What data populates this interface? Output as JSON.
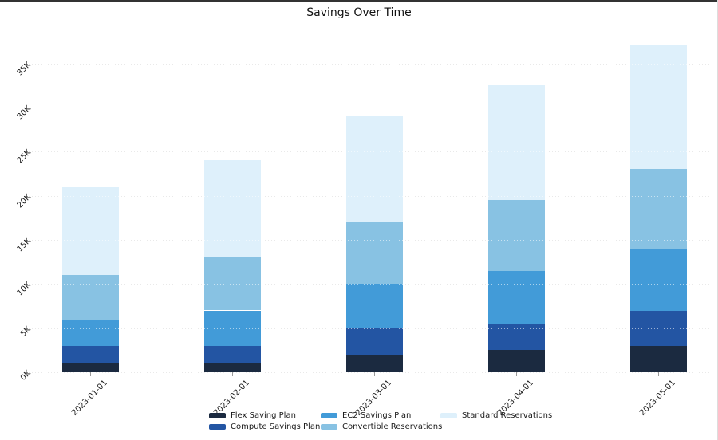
{
  "chart_data": {
    "type": "bar",
    "stacked": true,
    "title": "Savings Over Time",
    "categories": [
      "2023-01-01",
      "2023-02-01",
      "2023-03-01",
      "2023-04-01",
      "2023-05-01"
    ],
    "series": [
      {
        "name": "Flex Saving Plan",
        "color": "#1b2a40",
        "values": [
          1000,
          1000,
          2000,
          2500,
          3000
        ]
      },
      {
        "name": "Compute Savings Plan",
        "color": "#2355a3",
        "values": [
          2000,
          2000,
          3000,
          3000,
          4000
        ]
      },
      {
        "name": "EC2 Savings Plan",
        "color": "#429bd8",
        "values": [
          3000,
          4000,
          5000,
          6000,
          7000
        ]
      },
      {
        "name": "Convertible Reservations",
        "color": "#88c2e3",
        "values": [
          5000,
          6000,
          7000,
          8000,
          9000
        ]
      },
      {
        "name": "Standard Reservations",
        "color": "#def0fb",
        "values": [
          10000,
          11000,
          12000,
          13000,
          14000
        ]
      }
    ],
    "totals": [
      21000,
      24000,
      29000,
      32500,
      37000
    ],
    "y_axis": {
      "tick_labels": [
        "0K",
        "5K",
        "10K",
        "15K",
        "20K",
        "25K",
        "30K",
        "35K"
      ],
      "tick_values": [
        0,
        5000,
        10000,
        15000,
        20000,
        25000,
        30000,
        35000
      ],
      "range": [
        0,
        38500
      ]
    },
    "grid": "horizontal-dotted",
    "legend_position": "bottom",
    "background": "#ffffff",
    "tick_label_rotation_deg": 45
  }
}
